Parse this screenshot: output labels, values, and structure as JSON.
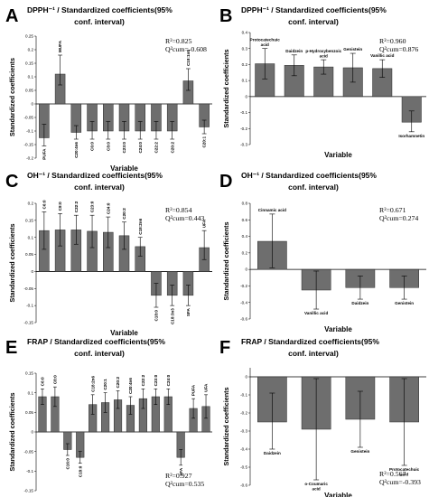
{
  "chart_data": [
    {
      "letter": "A",
      "type": "bar",
      "title_line1": "DPPH⁻¹ / Standardized coefficients(95%",
      "title_line2": "conf. interval)",
      "xlabel": "Variable",
      "ylabel": "Standardized coefficients",
      "stat1": "R²=0.825",
      "stat2": "Q²cum=-0.608",
      "ylim": [
        -0.2,
        0.25
      ],
      "yticks": [
        -0.2,
        -0.15,
        -0.1,
        -0.05,
        0,
        0.05,
        0.1,
        0.15,
        0.2,
        0.25
      ],
      "tick_labels": [
        "-0.2",
        "-0.15",
        "-0.1",
        "-0.05",
        "0",
        "0.05",
        "0.1",
        "0.15",
        "0.2",
        "0.25"
      ],
      "label_orientation": "vertical",
      "categories": [
        "PUFA",
        "MUFA",
        "C20:4n6",
        "C6:0",
        "C8:0",
        "C23:0",
        "C24:0",
        "C22:2",
        "C20:2",
        "C18:1n9",
        "C20:1"
      ],
      "values": [
        -0.125,
        0.11,
        -0.105,
        -0.1,
        -0.1,
        -0.1,
        -0.1,
        -0.1,
        -0.1,
        0.085,
        -0.085
      ],
      "err_low": [
        -0.155,
        0.07,
        -0.13,
        -0.13,
        -0.13,
        -0.13,
        -0.13,
        -0.13,
        -0.13,
        0.05,
        -0.11
      ],
      "err_high": [
        -0.075,
        0.18,
        -0.08,
        -0.065,
        -0.065,
        -0.065,
        -0.065,
        -0.065,
        -0.065,
        0.13,
        -0.06
      ]
    },
    {
      "letter": "B",
      "type": "bar",
      "title_line1": "DPPH⁻¹ / Standardized coefficients(95%",
      "title_line2": "conf. interval)",
      "xlabel": "Variable",
      "ylabel": "Standardized coefficients",
      "stat1": "R²=0.960",
      "stat2": "Q²cum=0.876",
      "ylim": [
        -0.3,
        0.4
      ],
      "yticks": [
        -0.3,
        -0.2,
        -0.1,
        0,
        0.1,
        0.2,
        0.3,
        0.4
      ],
      "tick_labels": [
        "-0.3",
        "-0.2",
        "-0.1",
        "0",
        "0.1",
        "0.2",
        "0.3",
        "0.4"
      ],
      "label_orientation": "horizontal",
      "categories": [
        "Protocatechuic acid",
        "Daidzein",
        "p-Hydroxybenzoic acid",
        "Genistein",
        "Vanillic acid",
        "Isorhamnetin"
      ],
      "values": [
        0.205,
        0.195,
        0.185,
        0.18,
        0.175,
        -0.16
      ],
      "err_low": [
        0.11,
        0.13,
        0.14,
        0.09,
        0.12,
        -0.22
      ],
      "err_high": [
        0.3,
        0.26,
        0.23,
        0.27,
        0.23,
        -0.09
      ]
    },
    {
      "letter": "C",
      "type": "bar",
      "title_line1": "OH⁻¹ / Standardized coefficients(95%",
      "title_line2": "conf. interval)",
      "xlabel": "Variable",
      "ylabel": "Standardized coefficients",
      "stat1": "R²=0.854",
      "stat2": "Q²cum=0.443",
      "ylim": [
        -0.15,
        0.2
      ],
      "yticks": [
        -0.15,
        -0.1,
        -0.05,
        0,
        0.05,
        0.1,
        0.15,
        0.2
      ],
      "tick_labels": [
        "-0.15",
        "-0.1",
        "-0.05",
        "0",
        "0.05",
        "0.1",
        "0.15",
        "0.2"
      ],
      "label_orientation": "vertical",
      "categories": [
        "C6:0",
        "C8:0",
        "C22:2",
        "C23:0",
        "C24:0",
        "C20:2",
        "C18:2n6",
        "C18:0",
        "C18:3n3",
        "SFA",
        "UFA"
      ],
      "values": [
        0.12,
        0.122,
        0.122,
        0.118,
        0.115,
        0.105,
        0.073,
        -0.07,
        -0.07,
        -0.07,
        0.07
      ],
      "err_low": [
        0.065,
        0.075,
        0.08,
        0.07,
        0.07,
        0.065,
        0.045,
        -0.105,
        -0.1,
        -0.1,
        0.035
      ],
      "err_high": [
        0.175,
        0.17,
        0.165,
        0.165,
        0.16,
        0.145,
        0.1,
        -0.035,
        -0.04,
        -0.04,
        0.12
      ]
    },
    {
      "letter": "D",
      "type": "bar",
      "title_line1": "OH⁻¹ / Standardized coefficients(95%",
      "title_line2": "conf. interval)",
      "xlabel": "Variable",
      "ylabel": "Standardized coefficients",
      "stat1": "R²=0.671",
      "stat2": "Q²cum=0.274",
      "ylim": [
        -0.6,
        0.8
      ],
      "yticks": [
        -0.6,
        -0.4,
        -0.2,
        0,
        0.2,
        0.4,
        0.6,
        0.8
      ],
      "tick_labels": [
        "-0.6",
        "-0.4",
        "-0.2",
        "0",
        "0.2",
        "0.4",
        "0.6",
        "0.8"
      ],
      "label_orientation": "horizontal",
      "categories": [
        "Cinnamic acid",
        "Vanillic acid",
        "Daidzein",
        "Genistein"
      ],
      "values": [
        0.34,
        -0.25,
        -0.22,
        -0.22
      ],
      "err_low": [
        0.02,
        -0.48,
        -0.36,
        -0.36
      ],
      "err_high": [
        0.67,
        -0.02,
        -0.08,
        -0.08
      ]
    },
    {
      "letter": "E",
      "type": "bar",
      "title_line1": "FRAP / Standardized coefficients(95%",
      "title_line2": "conf. interval)",
      "xlabel": "Variable",
      "ylabel": "Standardized coefficients",
      "stat1": "R²=0.927",
      "stat2": "Q²cum=0.535",
      "ylim": [
        -0.15,
        0.15
      ],
      "yticks": [
        -0.15,
        -0.1,
        -0.05,
        0,
        0.05,
        0.1,
        0.15
      ],
      "tick_labels": [
        "-0.15",
        "-0.1",
        "-0.05",
        "0",
        "0.05",
        "0.1",
        "0.15"
      ],
      "label_orientation": "vertical",
      "categories": [
        "C6:0",
        "C8:0",
        "C16:0",
        "C18:0",
        "C18:2n6",
        "C20:1",
        "C20:2",
        "C20:4n6",
        "C22:2",
        "C23:0",
        "C24:0",
        "SFA",
        "PUFA",
        "UFA"
      ],
      "values": [
        0.09,
        0.09,
        -0.045,
        -0.065,
        0.07,
        0.075,
        0.082,
        0.068,
        0.085,
        0.09,
        0.09,
        -0.065,
        0.06,
        0.065
      ],
      "err_low": [
        0.07,
        0.065,
        -0.06,
        -0.08,
        0.045,
        0.05,
        0.06,
        0.045,
        0.06,
        0.07,
        0.07,
        -0.085,
        0.035,
        0.035
      ],
      "err_high": [
        0.11,
        0.115,
        -0.03,
        -0.05,
        0.095,
        0.1,
        0.105,
        0.09,
        0.11,
        0.11,
        0.11,
        -0.045,
        0.085,
        0.095
      ]
    },
    {
      "letter": "F",
      "type": "bar",
      "title_line1": "FRAP / Standardized coefficients(95%",
      "title_line2": "conf. interval)",
      "xlabel": "Variable",
      "ylabel": "Standardized coefficients",
      "stat1": "R²=0.567",
      "stat2": "Q²cum=-0.393",
      "ylim": [
        -0.6,
        0.05
      ],
      "yticks": [
        -0.6,
        -0.5,
        -0.4,
        -0.3,
        -0.2,
        -0.1,
        0
      ],
      "tick_labels": [
        "-0.6",
        "-0.5",
        "-0.4",
        "-0.3",
        "-0.2",
        "-0.1",
        "0"
      ],
      "label_orientation": "horizontal",
      "categories": [
        "Daidzein",
        "o-Coumaric acid",
        "Genistein",
        "Protocatechuic acid"
      ],
      "values": [
        -0.25,
        -0.29,
        -0.235,
        -0.25
      ],
      "err_low": [
        -0.4,
        -0.57,
        -0.39,
        -0.49
      ],
      "err_high": [
        -0.09,
        -0.01,
        -0.08,
        -0.01
      ]
    }
  ]
}
